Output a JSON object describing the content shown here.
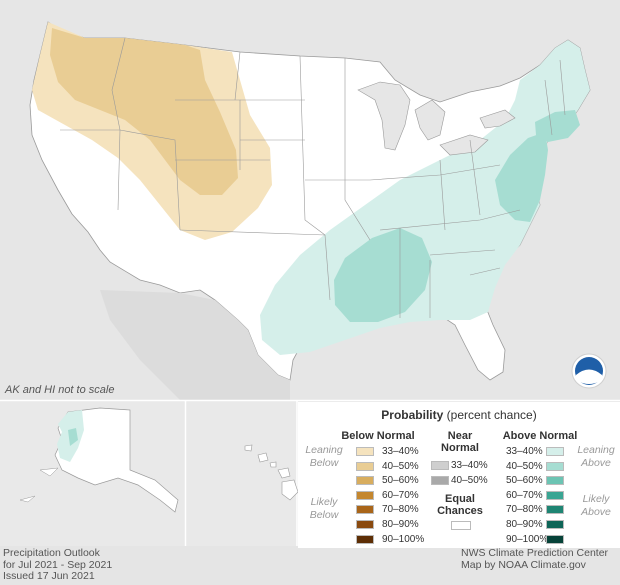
{
  "map": {
    "scale_note": "AK and HI not to scale",
    "footer_left": [
      "Precipitation Outlook",
      "for Jul 2021 - Sep 2021",
      "Issued 17 Jun 2021"
    ],
    "footer_right": [
      "NWS Climate Prediction Center",
      "Map by NOAA Climate.gov"
    ],
    "logo": "NOAA"
  },
  "legend": {
    "title_bold": "Probability",
    "title_rest": " (percent chance)",
    "below": {
      "heading": "Below Normal",
      "leaning": "Leaning Below",
      "likely": "Likely Below",
      "bins": [
        {
          "label": "33–40%",
          "color": "#f5e3be"
        },
        {
          "label": "40–50%",
          "color": "#e9cd94"
        },
        {
          "label": "50–60%",
          "color": "#d8ad5e"
        },
        {
          "label": "60–70%",
          "color": "#c4872e"
        },
        {
          "label": "70–80%",
          "color": "#a96519"
        },
        {
          "label": "80–90%",
          "color": "#8a4a0f"
        },
        {
          "label": "90–100%",
          "color": "#5d2e05"
        }
      ]
    },
    "near": {
      "heading": "Near Normal",
      "bins": [
        {
          "label": "33–40%",
          "color": "#cfcfcf"
        },
        {
          "label": "40–50%",
          "color": "#a9a9a9"
        }
      ]
    },
    "equal": {
      "label": "Equal Chances",
      "color": "#ffffff"
    },
    "above": {
      "heading": "Above Normal",
      "leaning": "Leaning Above",
      "likely": "Likely Above",
      "bins": [
        {
          "label": "33–40%",
          "color": "#d5efea"
        },
        {
          "label": "40–50%",
          "color": "#a6ddd2"
        },
        {
          "label": "50–60%",
          "color": "#6cc4b3"
        },
        {
          "label": "60–70%",
          "color": "#3aa593"
        },
        {
          "label": "70–80%",
          "color": "#1e8573"
        },
        {
          "label": "80–90%",
          "color": "#0e6557"
        },
        {
          "label": "90–100%",
          "color": "#064238"
        }
      ]
    }
  },
  "regions": [
    {
      "name": "below-normal-west",
      "category": "below",
      "bin": "33–40%"
    },
    {
      "name": "below-normal-northwest-core",
      "category": "below",
      "bin": "40–50%"
    },
    {
      "name": "above-normal-southeast",
      "category": "above",
      "bin": "33–40%"
    },
    {
      "name": "above-normal-lower-mississippi",
      "category": "above",
      "bin": "40–50%"
    },
    {
      "name": "above-normal-mid-atlantic",
      "category": "above",
      "bin": "40–50%"
    },
    {
      "name": "above-normal-southern-new-england",
      "category": "above",
      "bin": "40–50%"
    },
    {
      "name": "above-normal-alaska-west",
      "category": "above",
      "bin": "33–40%"
    }
  ]
}
